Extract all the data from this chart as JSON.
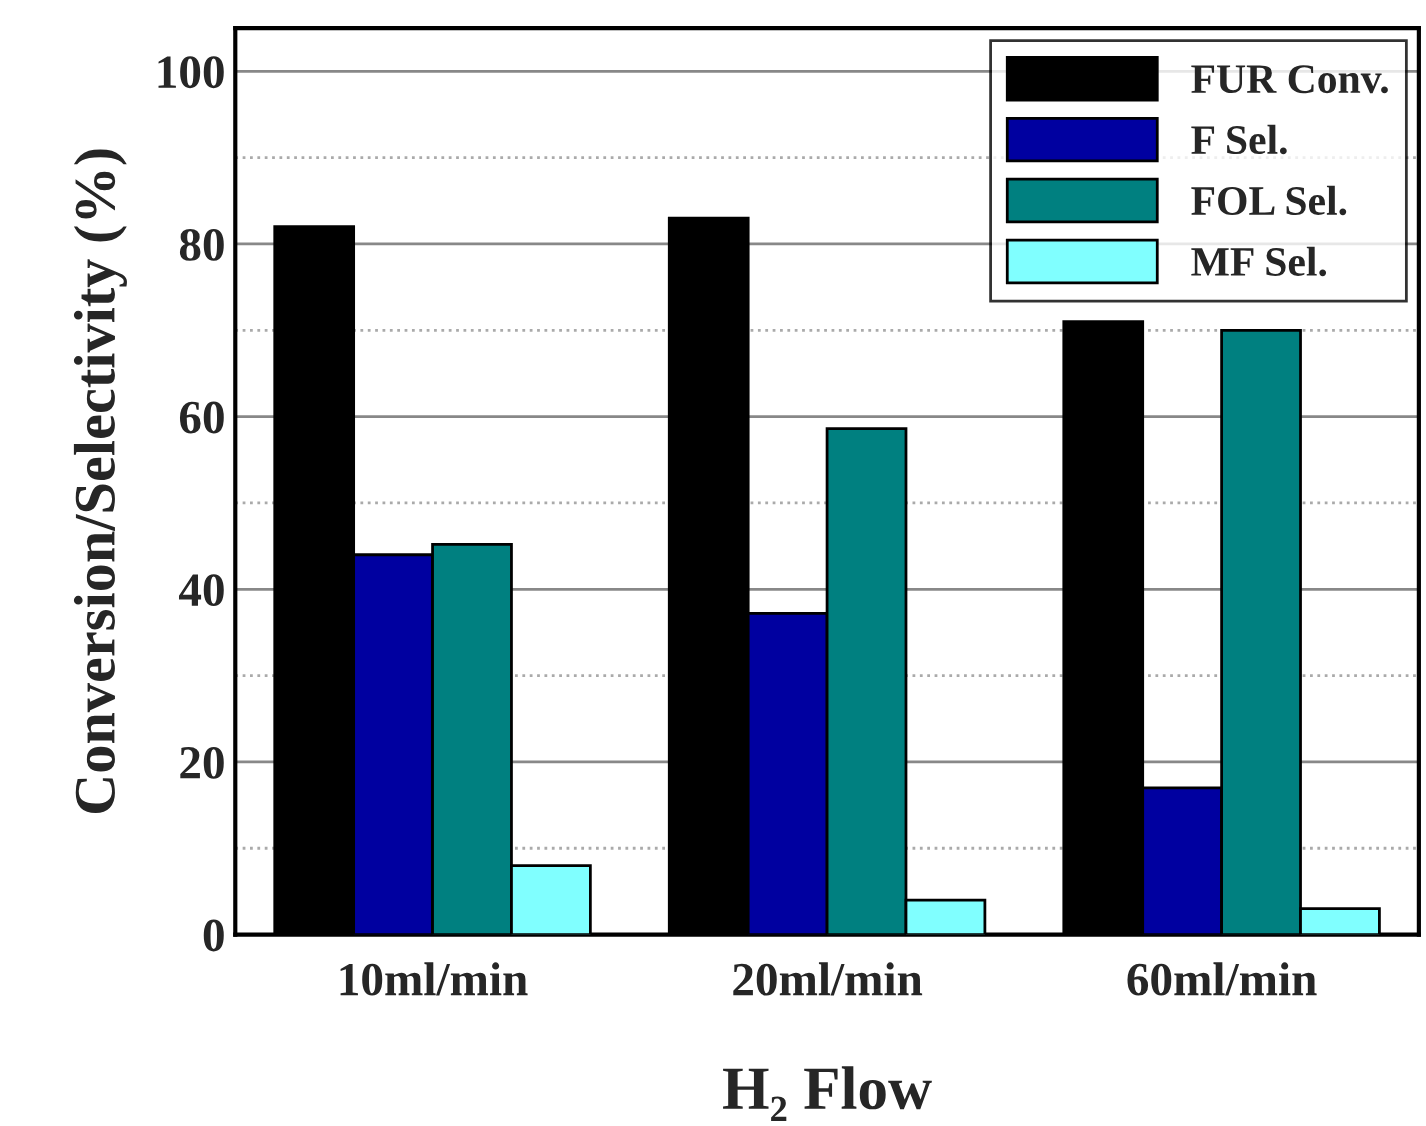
{
  "chart_data": {
    "type": "bar",
    "xlabel": "H₂ Flow",
    "ylabel": "Conversion/Selectivity (%)",
    "categories": [
      "10ml/min",
      "20ml/min",
      "60ml/min"
    ],
    "series": [
      {
        "name": "FUR Conv.",
        "color": "#000000",
        "values": [
          82,
          83,
          71
        ]
      },
      {
        "name": "F Sel.",
        "color": "#0000a0",
        "values": [
          44,
          37.2,
          17
        ]
      },
      {
        "name": "FOL Sel.",
        "color": "#008080",
        "values": [
          45.2,
          58.6,
          70
        ]
      },
      {
        "name": "MF Sel.",
        "color": "#80ffff",
        "values": [
          8,
          4,
          3
        ]
      }
    ],
    "ylim": [
      0,
      105
    ],
    "yticks": [
      0,
      20,
      40,
      60,
      80,
      100
    ],
    "grid": "y",
    "legend": "top right"
  }
}
